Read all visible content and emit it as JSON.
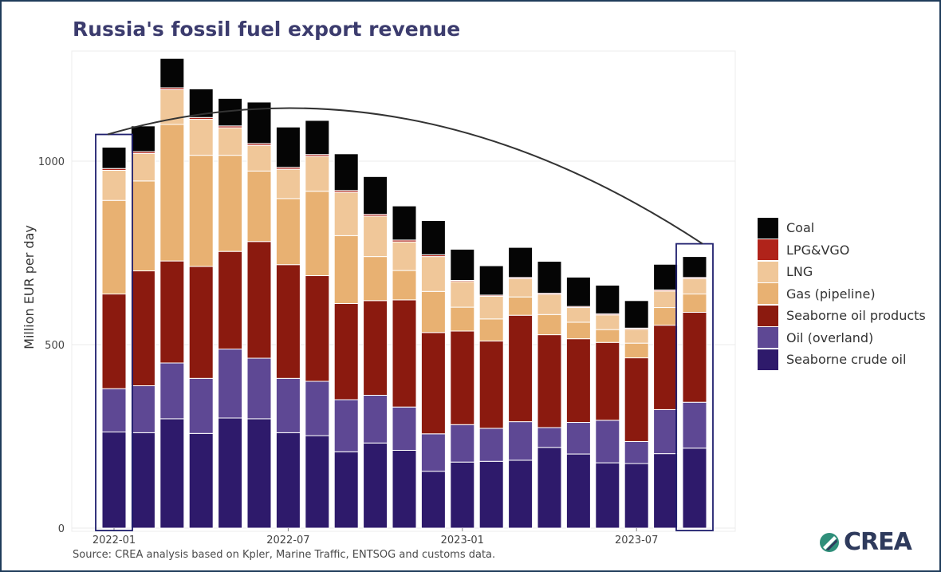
{
  "title": "Russia's fossil fuel export revenue",
  "source": "Source: CREA analysis based on Kpler, Marine Traffic, ENTSOG and customs data.",
  "logo_text": "CREA",
  "chart_data": {
    "type": "bar",
    "stacked": true,
    "ylabel": "Million EUR per day",
    "ylim": [
      0,
      1300
    ],
    "yticks": [
      0,
      500,
      1000
    ],
    "ytick_labels": [
      "0",
      "500",
      "1000"
    ],
    "xtick_labels": [
      {
        "label": "2022-01",
        "index": 0
      },
      {
        "label": "2022-07",
        "index": 6
      },
      {
        "label": "2023-01",
        "index": 12
      },
      {
        "label": "2023-07",
        "index": 18
      }
    ],
    "categories": [
      "2022-01",
      "2022-02",
      "2022-03",
      "2022-04",
      "2022-05",
      "2022-06",
      "2022-07",
      "2022-08",
      "2022-09",
      "2022-10",
      "2022-11",
      "2022-12",
      "2023-01",
      "2023-02",
      "2023-03",
      "2023-04",
      "2023-05",
      "2023-06",
      "2023-07",
      "2023-08",
      "2023-09"
    ],
    "grid": true,
    "legend_position": "right",
    "highlighted_categories": [
      "2022-01",
      "2023-09"
    ],
    "annotation": "arc connecting the first and last highlighted bars",
    "series": [
      {
        "name": "Seaborne crude oil",
        "color": "#2e1a6b",
        "values": [
          262,
          260,
          298,
          258,
          300,
          298,
          260,
          252,
          208,
          232,
          212,
          155,
          180,
          182,
          185,
          220,
          202,
          178,
          176,
          203,
          218
        ]
      },
      {
        "name": "Oil (overland)",
        "color": "#5e4894",
        "values": [
          118,
          128,
          152,
          150,
          188,
          165,
          148,
          148,
          142,
          130,
          118,
          102,
          102,
          90,
          105,
          54,
          86,
          116,
          60,
          120,
          125
        ]
      },
      {
        "name": "Seaborne oil products",
        "color": "#8b1a0f",
        "values": [
          258,
          313,
          278,
          305,
          266,
          318,
          310,
          288,
          262,
          258,
          292,
          276,
          255,
          238,
          290,
          253,
          228,
          212,
          228,
          230,
          245
        ]
      },
      {
        "name": "Gas (pipeline)",
        "color": "#e8b172",
        "values": [
          255,
          245,
          372,
          303,
          262,
          192,
          180,
          230,
          185,
          120,
          80,
          112,
          65,
          60,
          50,
          55,
          45,
          35,
          40,
          48,
          50
        ]
      },
      {
        "name": "LNG",
        "color": "#f0c799",
        "values": [
          82,
          75,
          95,
          98,
          75,
          70,
          80,
          95,
          118,
          110,
          78,
          95,
          70,
          62,
          50,
          55,
          40,
          40,
          38,
          45,
          42
        ]
      },
      {
        "name": "LPG&VGO",
        "color": "#b0231a",
        "values": [
          5,
          5,
          5,
          5,
          5,
          5,
          5,
          5,
          5,
          5,
          5,
          5,
          3,
          3,
          3,
          3,
          3,
          3,
          3,
          3,
          3
        ]
      },
      {
        "name": "Coal",
        "color": "#050505",
        "values": [
          58,
          70,
          80,
          78,
          75,
          113,
          110,
          93,
          100,
          103,
          93,
          93,
          85,
          80,
          82,
          87,
          80,
          78,
          75,
          70,
          57
        ]
      }
    ],
    "legend_order": [
      "Coal",
      "LPG&VGO",
      "LNG",
      "Gas (pipeline)",
      "Seaborne oil products",
      "Oil (overland)",
      "Seaborne crude oil"
    ]
  }
}
